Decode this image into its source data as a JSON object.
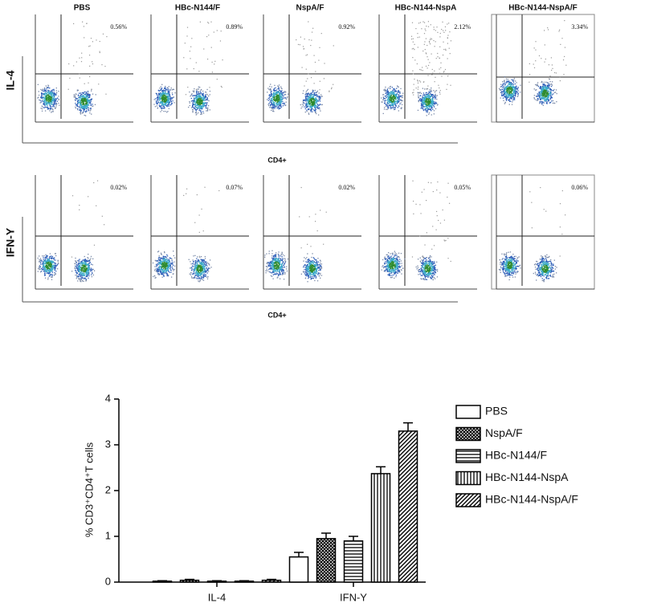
{
  "flow": {
    "titles": [
      "PBS",
      "HBc-N144/F",
      "NspA/F",
      "HBc-N144-NspA",
      "HBc-N144-NspA/F"
    ],
    "rows": [
      {
        "label": "IL-4",
        "x_label": "CD4+",
        "percentages": [
          "0.56%",
          "0.89%",
          "0.92%",
          "2.12%",
          "3.34%"
        ]
      },
      {
        "label": "IFN-Y",
        "x_label": "CD4+",
        "percentages": [
          "0.02%",
          "0.07%",
          "0.02%",
          "0.05%",
          "0.06%"
        ]
      }
    ]
  },
  "chart_data": {
    "type": "bar",
    "ylabel": "% CD3⁺CD4⁺T cells",
    "categories": [
      "IL-4",
      "IFN-Y"
    ],
    "series": [
      {
        "name": "PBS",
        "color": "#ffffff",
        "pattern": "none",
        "values": [
          0.02,
          0.55
        ],
        "errors": [
          0.01,
          0.1
        ]
      },
      {
        "name": "NspA/F",
        "color": "#000000",
        "pattern": "crosshatch",
        "values": [
          0.04,
          0.95
        ],
        "errors": [
          0.02,
          0.12
        ]
      },
      {
        "name": "HBc-N144/F",
        "color": "#000000",
        "pattern": "horizontal",
        "values": [
          0.02,
          0.9
        ],
        "errors": [
          0.01,
          0.1
        ]
      },
      {
        "name": "HBc-N144-NspA",
        "color": "#000000",
        "pattern": "vertical",
        "values": [
          0.02,
          2.37
        ],
        "errors": [
          0.01,
          0.15
        ]
      },
      {
        "name": "HBc-N144-NspA/F",
        "color": "#000000",
        "pattern": "diagonal",
        "values": [
          0.04,
          3.3
        ],
        "errors": [
          0.02,
          0.18
        ]
      }
    ],
    "ylim": [
      0,
      4
    ],
    "yticks": [
      0,
      1,
      2,
      3,
      4
    ]
  }
}
